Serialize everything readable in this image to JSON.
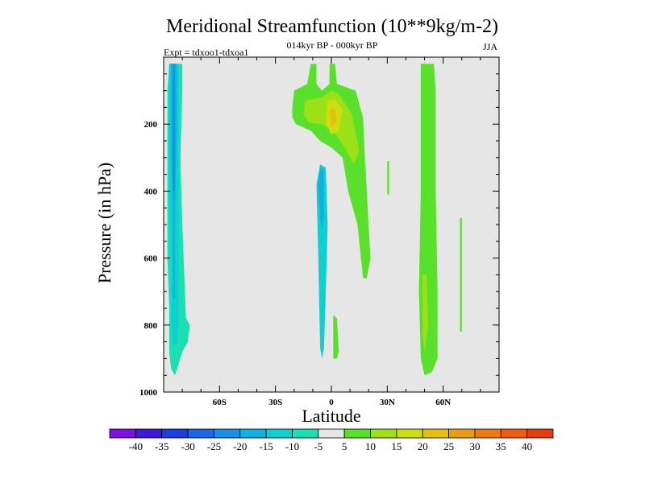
{
  "chart_data": {
    "type": "contour",
    "title": "Meridional Streamfunction (10**9kg/m-2)",
    "subtitle": "014kyr BP - 000kyr BP",
    "left_label": "Expt = tdxoo1-tdxoa1",
    "right_label": "JJA",
    "xlabel": "Latitude",
    "ylabel": "Pressure (in hPa)",
    "xlim": [
      -90,
      90
    ],
    "ylim": [
      0,
      1000
    ],
    "y_inverted": true,
    "x_ticks": [
      {
        "value": -60,
        "label": "60S"
      },
      {
        "value": -30,
        "label": "30S"
      },
      {
        "value": 0,
        "label": "0"
      },
      {
        "value": 30,
        "label": "30N"
      },
      {
        "value": 60,
        "label": "60N"
      }
    ],
    "y_ticks": [
      {
        "value": 200,
        "label": "200"
      },
      {
        "value": 400,
        "label": "400"
      },
      {
        "value": 600,
        "label": "600"
      },
      {
        "value": 800,
        "label": "800"
      },
      {
        "value": 1000,
        "label": "1000"
      }
    ],
    "background_color": "#e6e6e6",
    "colorbar": {
      "levels": [
        "-40",
        "-35",
        "-30",
        "-25",
        "-20",
        "-15",
        "-10",
        "-5",
        "5",
        "10",
        "15",
        "20",
        "25",
        "30",
        "35",
        "40"
      ],
      "colors": [
        "#8010e0",
        "#3c1ad8",
        "#1e3ee0",
        "#1a66e6",
        "#1a8fe6",
        "#12b0e0",
        "#10cfd0",
        "#18e0b0",
        "#e6e6e6",
        "#58e02a",
        "#9ce018",
        "#cce010",
        "#e6c00a",
        "#ea9c12",
        "#ee7a12",
        "#f05c12",
        "#e83a10"
      ]
    },
    "regions": [
      {
        "name": "sh-cell-outer",
        "level": "-5",
        "color": "#18e0b0",
        "points": [
          [
            -87,
            20
          ],
          [
            -80,
            20
          ],
          [
            -80,
            100
          ],
          [
            -81,
            300
          ],
          [
            -80,
            500
          ],
          [
            -78,
            780
          ],
          [
            -76,
            800
          ],
          [
            -77,
            850
          ],
          [
            -80,
            880
          ],
          [
            -83,
            935
          ],
          [
            -84,
            950
          ],
          [
            -86,
            930
          ],
          [
            -87,
            880
          ],
          [
            -87,
            750
          ],
          [
            -88,
            600
          ],
          [
            -88,
            300
          ],
          [
            -88,
            100
          ]
        ]
      },
      {
        "name": "sh-cell-mid",
        "level": "-10",
        "color": "#10cfd0",
        "points": [
          [
            -87,
            20
          ],
          [
            -82,
            20
          ],
          [
            -82,
            300
          ],
          [
            -82,
            500
          ],
          [
            -82,
            700
          ],
          [
            -82,
            800
          ],
          [
            -83,
            860
          ],
          [
            -85,
            860
          ],
          [
            -86,
            800
          ],
          [
            -86,
            600
          ],
          [
            -87,
            400
          ],
          [
            -87,
            200
          ]
        ]
      },
      {
        "name": "sh-cell-inner",
        "level": "-15",
        "color": "#12b0e0",
        "points": [
          [
            -86,
            20
          ],
          [
            -83,
            20
          ],
          [
            -83,
            200
          ],
          [
            -84,
            500
          ],
          [
            -84,
            720
          ],
          [
            -85,
            720
          ],
          [
            -85,
            500
          ],
          [
            -86,
            300
          ]
        ]
      },
      {
        "name": "sh-cell-core",
        "level": "-20",
        "color": "#1a8fe6",
        "points": [
          [
            -85,
            20
          ],
          [
            -84,
            20
          ],
          [
            -84,
            200
          ],
          [
            -84,
            400
          ],
          [
            -85,
            400
          ],
          [
            -85,
            200
          ]
        ]
      },
      {
        "name": "eq-negative-outer",
        "level": "-5",
        "color": "#10cfd0",
        "points": [
          [
            -6,
            320
          ],
          [
            -3,
            330
          ],
          [
            -2,
            500
          ],
          [
            -3,
            700
          ],
          [
            -4,
            870
          ],
          [
            -5,
            900
          ],
          [
            -6,
            870
          ],
          [
            -7,
            600
          ],
          [
            -8,
            380
          ]
        ]
      },
      {
        "name": "eq-negative-inner",
        "level": "-10",
        "color": "#12b0e0",
        "points": [
          [
            -6,
            330
          ],
          [
            -4,
            340
          ],
          [
            -4,
            480
          ],
          [
            -5,
            520
          ],
          [
            -6,
            480
          ],
          [
            -7,
            380
          ]
        ]
      },
      {
        "name": "nh-hadley-outer",
        "level": "5",
        "color": "#58e02a",
        "points": [
          [
            -20,
            100
          ],
          [
            -13,
            80
          ],
          [
            -11,
            20
          ],
          [
            -8,
            20
          ],
          [
            -8,
            80
          ],
          [
            -5,
            100
          ],
          [
            -1,
            80
          ],
          [
            -1,
            20
          ],
          [
            2,
            20
          ],
          [
            3,
            80
          ],
          [
            13,
            100
          ],
          [
            17,
            180
          ],
          [
            18,
            300
          ],
          [
            20,
            500
          ],
          [
            21,
            600
          ],
          [
            19,
            660
          ],
          [
            17,
            660
          ],
          [
            14,
            500
          ],
          [
            9,
            400
          ],
          [
            6,
            300
          ],
          [
            0,
            270
          ],
          [
            -6,
            250
          ],
          [
            -11,
            220
          ],
          [
            -19,
            200
          ],
          [
            -21,
            180
          ],
          [
            -21,
            150
          ]
        ]
      },
      {
        "name": "nh-hadley-mid",
        "level": "10",
        "color": "#9ce018",
        "points": [
          [
            -14,
            130
          ],
          [
            -5,
            120
          ],
          [
            0,
            100
          ],
          [
            4,
            110
          ],
          [
            11,
            170
          ],
          [
            15,
            280
          ],
          [
            12,
            320
          ],
          [
            6,
            260
          ],
          [
            1,
            220
          ],
          [
            -5,
            200
          ],
          [
            -12,
            195
          ],
          [
            -15,
            170
          ]
        ]
      },
      {
        "name": "nh-hadley-inner",
        "level": "15",
        "color": "#cce010",
        "points": [
          [
            -2,
            130
          ],
          [
            2,
            125
          ],
          [
            6,
            160
          ],
          [
            4,
            220
          ],
          [
            0,
            230
          ],
          [
            -3,
            200
          ]
        ]
      },
      {
        "name": "nh-hadley-core",
        "level": "20",
        "color": "#e6c00a",
        "points": [
          [
            -1,
            160
          ],
          [
            2,
            150
          ],
          [
            3,
            190
          ],
          [
            0,
            210
          ]
        ]
      },
      {
        "name": "eq-lower-positive",
        "level": "5",
        "color": "#58e02a",
        "points": [
          [
            1,
            770
          ],
          [
            3,
            780
          ],
          [
            4,
            880
          ],
          [
            3,
            900
          ],
          [
            1,
            900
          ],
          [
            1,
            840
          ]
        ]
      },
      {
        "name": "nh-ferrel-outer",
        "level": "5",
        "color": "#58e02a",
        "points": [
          [
            48,
            20
          ],
          [
            55,
            20
          ],
          [
            56,
            100
          ],
          [
            56,
            400
          ],
          [
            57,
            700
          ],
          [
            57,
            900
          ],
          [
            54,
            940
          ],
          [
            50,
            950
          ],
          [
            48,
            900
          ],
          [
            47,
            700
          ],
          [
            48,
            400
          ]
        ]
      },
      {
        "name": "nh-ferrel-inner",
        "level": "10",
        "color": "#9ce018",
        "points": [
          [
            49,
            650
          ],
          [
            51,
            650
          ],
          [
            52,
            800
          ],
          [
            50,
            880
          ],
          [
            49,
            830
          ]
        ]
      },
      {
        "name": "nh-small-cell-a",
        "level": "5",
        "color": "#58e02a",
        "points": [
          [
            69,
            480
          ],
          [
            70,
            480
          ],
          [
            70,
            820
          ],
          [
            69,
            820
          ]
        ]
      },
      {
        "name": "nh-small-cell-b",
        "level": "5",
        "color": "#58e02a",
        "points": [
          [
            30,
            310
          ],
          [
            31,
            310
          ],
          [
            31,
            410
          ],
          [
            30,
            410
          ]
        ]
      }
    ]
  }
}
